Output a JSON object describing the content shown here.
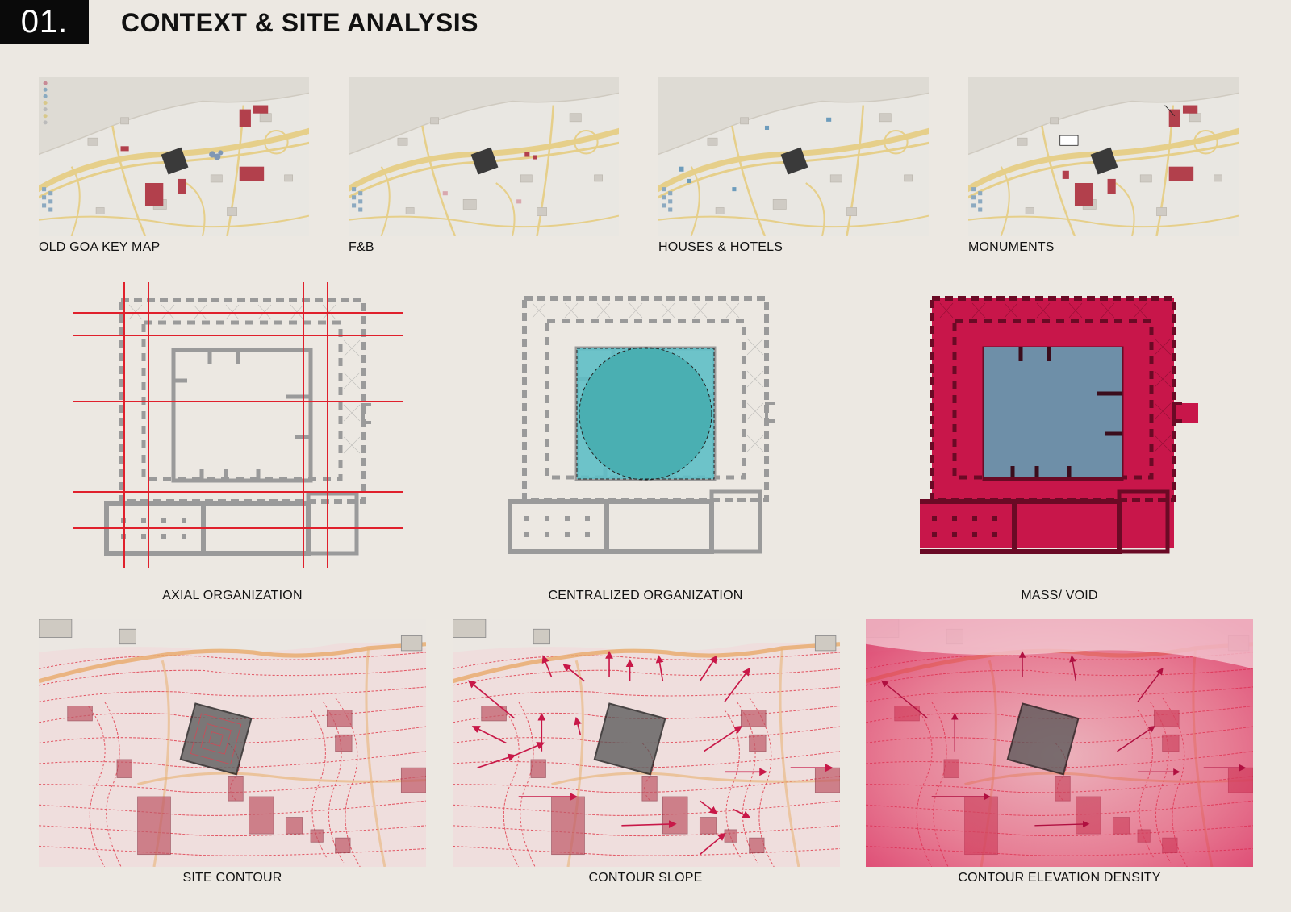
{
  "header": {
    "number": "01.",
    "title": "CONTEXT & SITE ANALYSIS"
  },
  "context_maps": [
    {
      "caption": "OLD GOA KEY MAP"
    },
    {
      "caption": "F&B"
    },
    {
      "caption": "HOUSES & HOTELS"
    },
    {
      "caption": "MONUMENTS"
    }
  ],
  "organization_diagrams": [
    {
      "caption": "AXIAL ORGANIZATION"
    },
    {
      "caption": "CENTRALIZED ORGANIZATION"
    },
    {
      "caption": "MASS/ VOID"
    }
  ],
  "contour_maps": [
    {
      "caption": "SITE CONTOUR"
    },
    {
      "caption": "CONTOUR SLOPE"
    },
    {
      "caption": "CONTOUR ELEVATION DENSITY"
    }
  ],
  "colors": {
    "background": "#ece8e2",
    "axis_red": "#e0202c",
    "mass_crimson": "#c8164a",
    "void_blue": "#6e8fa8",
    "court_teal": "#4fb7bc",
    "road_yellow": "#e6cf8a",
    "contour_red": "#e04050"
  }
}
